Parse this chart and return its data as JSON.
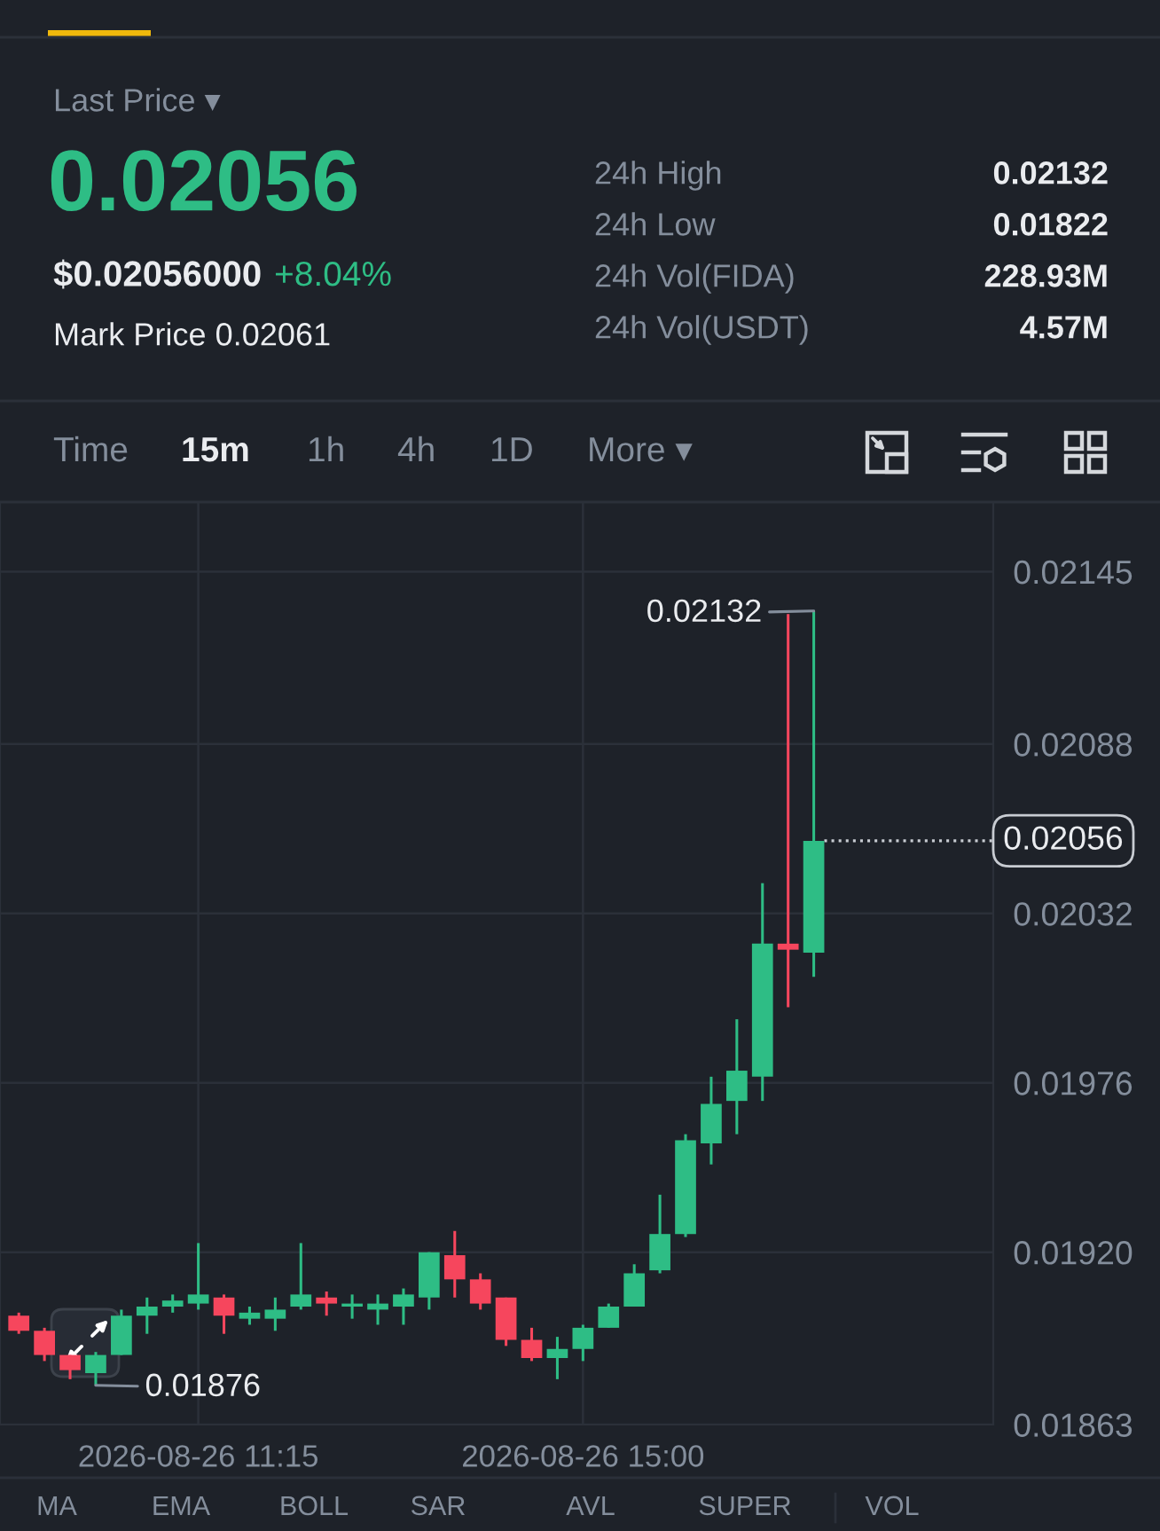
{
  "chart_data": [
    {
      "type": "other",
      "annotations": [
        "Last Price ▾",
        "0.02056",
        "$0.02056000",
        "+8.04%",
        "Mark Price 0.02061",
        "24h High",
        "0.02132",
        "24h Low",
        "0.01822",
        "24h Vol(FIDA)",
        "228.93M",
        "24h Vol(USDT)",
        "4.57M",
        "Time",
        "15m",
        "1h",
        "4h",
        "1D",
        "More ▾"
      ]
    },
    {
      "type": "candlestick",
      "x": [
        "2026-08-26T09:30",
        "2026-08-26T09:45",
        "2026-08-26T10:00",
        "2026-08-26T10:15",
        "2026-08-26T10:30",
        "2026-08-26T10:45",
        "2026-08-26T11:00",
        "2026-08-26T11:15",
        "2026-08-26T11:30",
        "2026-08-26T11:45",
        "2026-08-26T12:00",
        "2026-08-26T12:15",
        "2026-08-26T12:30",
        "2026-08-26T12:45",
        "2026-08-26T13:00",
        "2026-08-26T13:15",
        "2026-08-26T13:30",
        "2026-08-26T13:45",
        "2026-08-26T14:00",
        "2026-08-26T14:15",
        "2026-08-26T14:30",
        "2026-08-26T14:45",
        "2026-08-26T15:00",
        "2026-08-26T15:15",
        "2026-08-26T15:30",
        "2026-08-26T15:45",
        "2026-08-26T16:00",
        "2026-08-26T16:15",
        "2026-08-26T16:30",
        "2026-08-26T16:45",
        "2026-08-26T17:00",
        "2026-08-26T17:15"
      ],
      "ohlc": [
        [
          0.01899,
          0.019,
          0.01893,
          0.01894
        ],
        [
          0.01894,
          0.01895,
          0.01884,
          0.01886
        ],
        [
          0.01886,
          0.01886,
          0.01878,
          0.01881
        ],
        [
          0.0188,
          0.01887,
          0.01876,
          0.01886
        ],
        [
          0.01886,
          0.01901,
          0.01886,
          0.01899
        ],
        [
          0.01899,
          0.01905,
          0.01893,
          0.01902
        ],
        [
          0.01902,
          0.01906,
          0.019,
          0.01904
        ],
        [
          0.01903,
          0.01923,
          0.01901,
          0.01906
        ],
        [
          0.01905,
          0.01906,
          0.01893,
          0.01899
        ],
        [
          0.01898,
          0.01902,
          0.01896,
          0.019
        ],
        [
          0.01898,
          0.01905,
          0.01894,
          0.01901
        ],
        [
          0.01902,
          0.01923,
          0.01901,
          0.01906
        ],
        [
          0.01905,
          0.01907,
          0.01899,
          0.01903
        ],
        [
          0.01902,
          0.01906,
          0.01898,
          0.01903
        ],
        [
          0.01901,
          0.01906,
          0.01896,
          0.01903
        ],
        [
          0.01902,
          0.01908,
          0.01896,
          0.01906
        ],
        [
          0.01905,
          0.0192,
          0.01901,
          0.0192
        ],
        [
          0.01919,
          0.01927,
          0.01905,
          0.01911
        ],
        [
          0.01911,
          0.01913,
          0.01901,
          0.01903
        ],
        [
          0.01905,
          0.01905,
          0.01889,
          0.01891
        ],
        [
          0.01891,
          0.01895,
          0.01884,
          0.01885
        ],
        [
          0.01885,
          0.01892,
          0.01878,
          0.01888
        ],
        [
          0.01888,
          0.01896,
          0.01884,
          0.01895
        ],
        [
          0.01895,
          0.01903,
          0.01895,
          0.01902
        ],
        [
          0.01902,
          0.01916,
          0.01902,
          0.01913
        ],
        [
          0.01914,
          0.01939,
          0.01913,
          0.01926
        ],
        [
          0.01926,
          0.01959,
          0.01925,
          0.01957
        ],
        [
          0.01956,
          0.01978,
          0.01949,
          0.01969
        ],
        [
          0.0197,
          0.01997,
          0.01959,
          0.0198
        ],
        [
          0.01978,
          0.02042,
          0.0197,
          0.02022
        ],
        [
          0.02022,
          0.02131,
          0.02001,
          0.0202
        ],
        [
          0.02019,
          0.02132,
          0.02011,
          0.02056
        ]
      ],
      "colors": [
        "#f6465d",
        "#f6465d",
        "#f6465d",
        "#2ebd85",
        "#2ebd85",
        "#2ebd85",
        "#2ebd85",
        "#2ebd85",
        "#f6465d",
        "#2ebd85",
        "#2ebd85",
        "#2ebd85",
        "#f6465d",
        "#2ebd85",
        "#2ebd85",
        "#2ebd85",
        "#2ebd85",
        "#f6465d",
        "#f6465d",
        "#f6465d",
        "#f6465d",
        "#2ebd85",
        "#2ebd85",
        "#2ebd85",
        "#2ebd85",
        "#2ebd85",
        "#2ebd85",
        "#2ebd85",
        "#2ebd85",
        "#2ebd85",
        "#f6465d",
        "#2ebd85"
      ],
      "xlim": [
        "2026-08-26T09:19",
        "2026-08-26T19:00"
      ],
      "xticks": [
        {
          "value": "2026-08-26T11:15",
          "label": "2026-08-26 11:15"
        },
        {
          "value": "2026-08-26T15:00",
          "label": "2026-08-26 15:00"
        }
      ],
      "ylim": [
        0.01863,
        0.02168
      ],
      "yticks": [
        0.02145,
        0.02088,
        0.02032,
        0.01976,
        {
          "value": 0.0192,
          "label": "0.01920"
        },
        0.01863
      ],
      "grid": true,
      "ref_lines": [
        {
          "axis": "y",
          "value": 0.02056,
          "label": "0.02056",
          "line_style": "dotted",
          "color": "#c8ccd2"
        }
      ],
      "annotations": [
        {
          "text": "0.02132",
          "x": "2026-08-26T17:15",
          "y": 0.02132
        },
        {
          "text": "0.01876",
          "x": "2026-08-26T10:15",
          "y": 0.01876
        }
      ]
    },
    {
      "type": "other",
      "annotations": [
        "MA",
        "EMA",
        "BOLL",
        "SAR",
        "AVL",
        "SUPER",
        "VOL"
      ]
    }
  ]
}
